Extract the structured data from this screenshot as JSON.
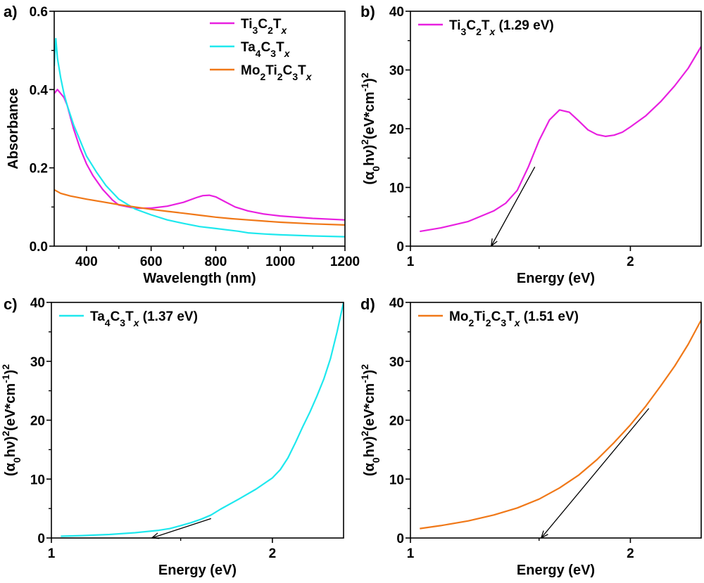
{
  "colors": {
    "magenta": "#e820e0",
    "cyan": "#1ee8ee",
    "orange": "#f07818",
    "black": "#000000"
  },
  "chart_data": [
    {
      "panel_label": "a)",
      "type": "line",
      "xlabel": "Wavelength (nm)",
      "ylabel": "Absorbance",
      "xlim": [
        300,
        1200
      ],
      "ylim": [
        0,
        0.6
      ],
      "xticks": [
        "400",
        "600",
        "800",
        "1000",
        "1200"
      ],
      "yticks": [
        "0.0",
        "0.2",
        "0.4",
        "0.6"
      ],
      "legend": [
        {
          "base": "Ti",
          "s1": "3",
          "b2": "C",
          "s2": "2",
          "b3": "T",
          "s3": "x"
        },
        {
          "base": "Ta",
          "s1": "4",
          "b2": "C",
          "s2": "3",
          "b3": "T",
          "s3": "x"
        },
        {
          "base": "Mo",
          "s1": "2",
          "b2": "Ti",
          "s2": "2",
          "b3": "C",
          "s3": "3",
          "b4": "T",
          "s4": "x"
        }
      ],
      "legend_placement": "top-right",
      "series": [
        {
          "color": "magenta",
          "x": [
            300,
            310,
            320,
            330,
            340,
            350,
            360,
            380,
            400,
            420,
            450,
            480,
            500,
            550,
            600,
            650,
            700,
            740,
            760,
            780,
            800,
            830,
            860,
            900,
            950,
            1000,
            1100,
            1200
          ],
          "y": [
            0.39,
            0.4,
            0.39,
            0.38,
            0.36,
            0.33,
            0.3,
            0.25,
            0.21,
            0.18,
            0.145,
            0.118,
            0.105,
            0.097,
            0.097,
            0.102,
            0.112,
            0.124,
            0.129,
            0.13,
            0.126,
            0.113,
            0.1,
            0.09,
            0.082,
            0.077,
            0.071,
            0.067
          ]
        },
        {
          "color": "cyan",
          "x": [
            300,
            305,
            310,
            320,
            330,
            340,
            360,
            380,
            400,
            430,
            460,
            500,
            550,
            600,
            650,
            700,
            750,
            800,
            850,
            870,
            900,
            950,
            1000,
            1100,
            1200
          ],
          "y": [
            0.46,
            0.53,
            0.48,
            0.43,
            0.39,
            0.36,
            0.31,
            0.27,
            0.23,
            0.19,
            0.155,
            0.12,
            0.095,
            0.08,
            0.067,
            0.058,
            0.05,
            0.045,
            0.04,
            0.038,
            0.034,
            0.031,
            0.029,
            0.026,
            0.024
          ]
        },
        {
          "color": "orange",
          "x": [
            300,
            320,
            350,
            400,
            450,
            500,
            550,
            600,
            650,
            700,
            750,
            800,
            850,
            900,
            950,
            1000,
            1100,
            1200
          ],
          "y": [
            0.144,
            0.135,
            0.128,
            0.12,
            0.113,
            0.106,
            0.1,
            0.094,
            0.089,
            0.084,
            0.079,
            0.074,
            0.07,
            0.067,
            0.064,
            0.061,
            0.057,
            0.054
          ]
        }
      ]
    },
    {
      "panel_label": "b)",
      "type": "line",
      "xlabel": "Energy (eV)",
      "ylabel": "(α0hν)²(eV*cm⁻¹)²",
      "xlim": [
        1.0,
        2.5
      ],
      "ylim": [
        0,
        40
      ],
      "xticks": [
        "1",
        "2"
      ],
      "yticks": [
        "0",
        "10",
        "20",
        "30",
        "40"
      ],
      "legend": [
        {
          "base": "Ti",
          "s1": "3",
          "b2": "C",
          "s2": "2",
          "b3": "T",
          "s3": "x",
          "suffix": " (1.29 eV)"
        }
      ],
      "legend_placement": "top-left",
      "series": [
        {
          "color": "magenta",
          "x": [
            1.03,
            1.1,
            1.2,
            1.3,
            1.35,
            1.4,
            1.45,
            1.5,
            1.55,
            1.6,
            1.65,
            1.7,
            1.75,
            1.8,
            1.85,
            1.9,
            1.95,
            2.0,
            2.1,
            2.2,
            2.3,
            2.4,
            2.5
          ],
          "y": [
            2.5,
            3.1,
            4.2,
            6.0,
            7.3,
            9.5,
            13.5,
            18.0,
            21.5,
            23.2,
            22.8,
            21.3,
            19.8,
            19.0,
            18.7,
            18.9,
            19.4,
            20.3,
            22.2,
            24.6,
            27.3,
            30.3,
            34.0
          ]
        }
      ],
      "tangent": {
        "x1": 1.48,
        "y1": 13.5,
        "x2": 1.29,
        "y2": 0
      }
    },
    {
      "panel_label": "c)",
      "type": "line",
      "xlabel": "Energy (eV)",
      "ylabel": "(α0hν)²(eV*cm⁻¹)²",
      "xlim": [
        1.0,
        2.5
      ],
      "ylim": [
        0,
        40
      ],
      "xticks": [
        "1",
        "2"
      ],
      "yticks": [
        "0",
        "10",
        "20",
        "30",
        "40"
      ],
      "legend": [
        {
          "base": "Ta",
          "s1": "4",
          "b2": "C",
          "s2": "3",
          "b3": "T",
          "s3": "x",
          "suffix": " (1.37 eV)"
        }
      ],
      "legend_placement": "top-left",
      "series": [
        {
          "color": "cyan",
          "x": [
            1.03,
            1.1,
            1.2,
            1.3,
            1.4,
            1.45,
            1.5,
            1.55,
            1.6,
            1.65,
            1.7,
            1.8,
            1.9,
            2.0,
            2.05,
            2.1,
            2.15,
            2.2,
            2.25,
            2.3,
            2.35,
            2.4,
            2.45,
            2.5
          ],
          "y": [
            0.3,
            0.4,
            0.6,
            0.9,
            1.3,
            1.6,
            2.1,
            2.6,
            3.2,
            3.9,
            4.9,
            6.6,
            8.3,
            10.2,
            11.6,
            13.6,
            16.2,
            18.9,
            21.4,
            24.1,
            27.0,
            30.5,
            35.0,
            40.0
          ]
        }
      ],
      "tangent": {
        "x1": 1.65,
        "y1": 3.3,
        "x2": 1.37,
        "y2": 0
      }
    },
    {
      "panel_label": "d)",
      "type": "line",
      "xlabel": "Energy (eV)",
      "ylabel": "(α0hν)²(eV*cm⁻¹)²",
      "xlim": [
        1.0,
        2.5
      ],
      "ylim": [
        0,
        40
      ],
      "xticks": [
        "1",
        "2"
      ],
      "yticks": [
        "0",
        "10",
        "20",
        "30",
        "40"
      ],
      "legend": [
        {
          "base": "Mo",
          "s1": "2",
          "b2": "Ti",
          "s2": "2",
          "b3": "C",
          "s3": "3",
          "b4": "T",
          "s4": "x",
          "suffix": " (1.51 eV)"
        }
      ],
      "legend_placement": "top-left",
      "series": [
        {
          "color": "orange",
          "x": [
            1.03,
            1.1,
            1.2,
            1.3,
            1.4,
            1.5,
            1.6,
            1.7,
            1.8,
            1.9,
            2.0,
            2.1,
            2.2,
            2.3,
            2.4,
            2.5
          ],
          "y": [
            1.6,
            2.1,
            2.9,
            3.9,
            5.1,
            6.6,
            8.5,
            10.7,
            13.3,
            16.2,
            19.2,
            22.4,
            25.8,
            29.2,
            32.9,
            37.0
          ]
        }
      ],
      "tangent": {
        "x1": 2.12,
        "y1": 22.0,
        "x2": 1.51,
        "y2": 0
      }
    }
  ]
}
